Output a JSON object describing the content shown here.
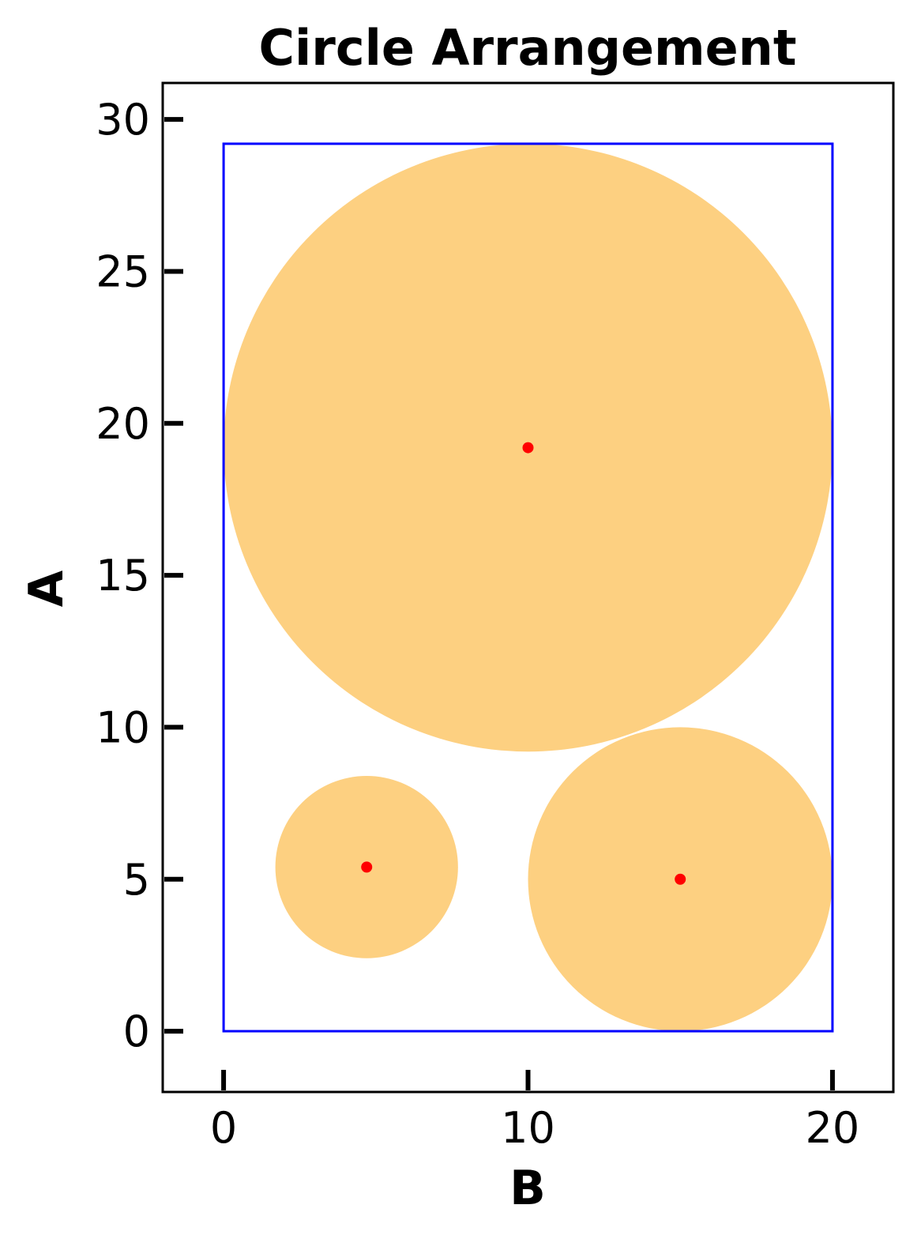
{
  "chart_data": {
    "type": "scatter",
    "title": "Circle Arrangement",
    "xlabel": "B",
    "ylabel": "A",
    "xlim": [
      -2,
      22
    ],
    "ylim": [
      -2,
      31.2
    ],
    "x_ticks": [
      0,
      10,
      20
    ],
    "y_ticks": [
      0,
      5,
      10,
      15,
      20,
      25,
      30
    ],
    "x_tick_labels": [
      "0",
      "10",
      "20"
    ],
    "y_tick_labels": [
      "0",
      "5",
      "10",
      "15",
      "20",
      "25",
      "30"
    ],
    "grid": false,
    "container": {
      "x": [
        0,
        20
      ],
      "y": [
        0,
        29.2
      ],
      "color": "#0000ff"
    },
    "circles": [
      {
        "cx": 10,
        "cy": 19.2,
        "r": 10
      },
      {
        "cx": 4.7,
        "cy": 5.4,
        "r": 3
      },
      {
        "cx": 15,
        "cy": 5,
        "r": 5
      }
    ],
    "colors": {
      "circle_fill": "#fdd081",
      "center_point": "#ff0000",
      "axes": "#000000"
    }
  }
}
